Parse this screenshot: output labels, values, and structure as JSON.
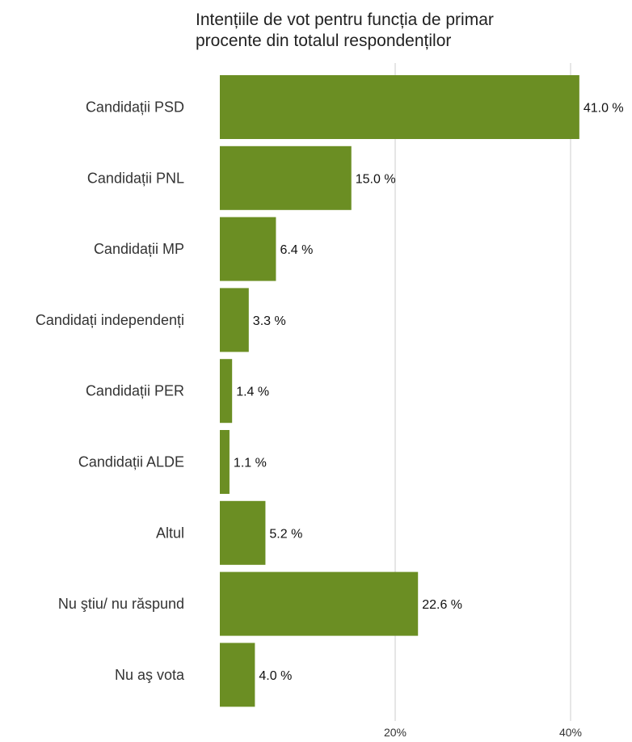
{
  "chart_data": {
    "type": "bar",
    "orientation": "horizontal",
    "title": "Intențiile de vot pentru funcția de primar",
    "subtitle": "procente din totalul respondenților",
    "categories": [
      "Candidații PSD",
      "Candidații PNL",
      "Candidații MP",
      "Candidați independenți",
      "Candidații PER",
      "Candidații ALDE",
      "Altul",
      "Nu ştiu/ nu răspund",
      "Nu aş vota"
    ],
    "values": [
      41.0,
      15.0,
      6.4,
      3.3,
      1.4,
      1.1,
      5.2,
      22.6,
      4.0
    ],
    "value_labels": [
      "41.0 %",
      "15.0 %",
      "6.4 %",
      "3.3 %",
      "1.4 %",
      "1.1 %",
      "5.2 %",
      "22.6 %",
      "4.0 %"
    ],
    "xlim": [
      0,
      42
    ],
    "ticks": [
      20,
      40
    ],
    "tick_labels": [
      "20%",
      "40%"
    ],
    "grid": true,
    "bar_color": "#6b8e23",
    "xlabel": "",
    "ylabel": ""
  }
}
